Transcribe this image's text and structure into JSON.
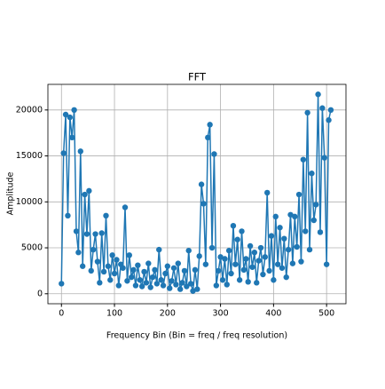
{
  "chart_data": {
    "type": "line",
    "title": "FFT",
    "x_label": "Frequency Bin (Bin = freq / freq resolution)",
    "y_label": "Amplitude",
    "x": [
      0,
      4,
      8,
      12,
      16,
      20,
      24,
      28,
      32,
      36,
      40,
      44,
      48,
      52,
      56,
      60,
      64,
      68,
      72,
      76,
      80,
      84,
      88,
      92,
      96,
      100,
      104,
      108,
      112,
      116,
      120,
      124,
      128,
      132,
      136,
      140,
      144,
      148,
      152,
      156,
      160,
      164,
      168,
      172,
      176,
      180,
      184,
      188,
      192,
      196,
      200,
      204,
      208,
      212,
      216,
      220,
      224,
      228,
      232,
      236,
      240,
      244,
      248,
      252,
      256,
      260,
      264,
      268,
      272,
      276,
      280,
      284,
      288,
      292,
      296,
      300,
      304,
      308,
      312,
      316,
      320,
      324,
      328,
      332,
      336,
      340,
      344,
      348,
      352,
      356,
      360,
      364,
      368,
      372,
      376,
      380,
      384,
      388,
      392,
      396,
      400,
      404,
      408,
      412,
      416,
      420,
      424,
      428,
      432,
      436,
      440,
      444,
      448,
      452,
      456,
      460,
      464,
      468,
      472,
      476,
      480,
      484,
      488,
      492,
      496,
      500,
      504,
      508
    ],
    "series": [
      {
        "name": "FFT",
        "color": "#1f77b4",
        "values": [
          1100,
          15300,
          19500,
          8500,
          19200,
          17000,
          20000,
          6800,
          4500,
          15500,
          3000,
          10800,
          6500,
          11200,
          2500,
          4800,
          6500,
          3500,
          1200,
          6600,
          2400,
          8500,
          3000,
          1500,
          4200,
          2200,
          3700,
          900,
          3200,
          2800,
          9400,
          1400,
          4200,
          1800,
          2600,
          900,
          3100,
          1500,
          800,
          2400,
          1200,
          3300,
          700,
          1800,
          2600,
          1100,
          4800,
          1500,
          900,
          2200,
          3000,
          600,
          1400,
          2800,
          1000,
          3300,
          500,
          1200,
          2500,
          800,
          4700,
          1100,
          300,
          2600,
          500,
          4100,
          11900,
          9800,
          3200,
          17000,
          18400,
          5000,
          15200,
          900,
          2500,
          4000,
          1500,
          3800,
          1000,
          4700,
          2200,
          7400,
          3200,
          5900,
          1500,
          6800,
          2600,
          3800,
          1300,
          5200,
          2900,
          4500,
          1200,
          3600,
          5000,
          2100,
          4000,
          11000,
          2500,
          6300,
          1500,
          8400,
          3200,
          7200,
          2800,
          6000,
          1800,
          4800,
          8600,
          3300,
          8400,
          5100,
          10800,
          3500,
          14600,
          6800,
          19700,
          4800,
          13100,
          8000,
          9700,
          21700,
          6700,
          20200,
          14800,
          3200,
          18900,
          20000
        ]
      }
    ],
    "xlim": [
      -25.55,
      536.55
    ],
    "ylim": [
      -1085,
      22785
    ],
    "xticks": [
      0,
      100,
      200,
      300,
      400,
      500
    ],
    "yticks": [
      0,
      5000,
      10000,
      15000,
      20000
    ],
    "grid": true
  }
}
